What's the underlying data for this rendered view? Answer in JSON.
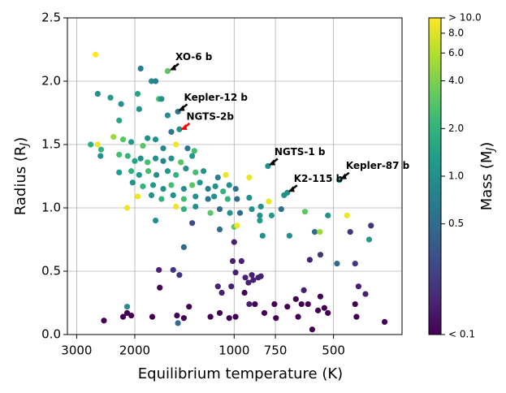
{
  "chart_data": {
    "type": "scatter",
    "x_label": "Equilibrium temperature (K)",
    "y_label": {
      "text": "Radius (R",
      "sub": "J",
      "end": ")"
    },
    "color_label": {
      "text": "Mass (M",
      "sub": "J",
      "end": ")"
    },
    "xscale": "log",
    "xlim": [
      3200,
      310
    ],
    "xticks": [
      3000,
      2000,
      1000,
      750,
      500
    ],
    "ylim": [
      0,
      2.5
    ],
    "yticks": [
      {
        "value": 0,
        "label": "0.0"
      },
      0.5,
      {
        "value": 1,
        "label": "1.0"
      },
      1.5,
      {
        "value": 2,
        "label": "2.0"
      },
      2.5
    ],
    "grid": true,
    "colormap": "viridis",
    "cscale": "log",
    "clim": [
      0.1,
      10
    ],
    "cticks": [
      {
        "value": 10,
        "label": "> 10.0"
      },
      {
        "value": 8,
        "label": "8.0"
      },
      {
        "value": 6,
        "label": "6.0"
      },
      {
        "value": 4,
        "label": "4.0"
      },
      {
        "value": 2,
        "label": "2.0"
      },
      {
        "value": 1,
        "label": "1.0"
      },
      0.5,
      {
        "value": 0.1,
        "label": "< 0.1"
      }
    ],
    "x": [
      2630,
      2590,
      2370,
      2200,
      2230,
      1920,
      1780,
      1730,
      1590,
      1690,
      1660,
      1960,
      1940,
      1480,
      1590,
      1465,
      1550,
      2720,
      2530,
      2590,
      2540,
      2320,
      2170,
      2050,
      1890,
      1830,
      1730,
      1640,
      1500,
      1384,
      1320,
      2230,
      2100,
      2000,
      1920,
      1830,
      1730,
      1640,
      1550,
      1450,
      1340,
      2230,
      2050,
      1940,
      1820,
      1720,
      1590,
      1500,
      1400,
      1309,
      1238,
      1120,
      1060,
      900,
      790,
      2030,
      1890,
      1760,
      1640,
      1550,
      1420,
      1340,
      1270,
      1200,
      1140,
      1080,
      1035,
      989,
      1960,
      1780,
      1660,
      1530,
      1420,
      1309,
      1200,
      1150,
      1046,
      980,
      900,
      706,
      690,
      480,
      2110,
      1500,
      1420,
      1309,
      1180,
      1106,
      1030,
      960,
      884,
      830,
      785,
      720,
      836,
      770,
      610,
      520,
      455,
      1730,
      1340,
      1106,
      1000,
      980,
      836,
      570,
      550,
      445,
      385,
      820,
      680,
      390,
      1420,
      1000,
      548,
      590,
      488,
      430,
      1690,
      1530,
      1465,
      1010,
      950,
      990,
      1680,
      925,
      905,
      875,
      845,
      830,
      1120,
      1090,
      1020,
      930,
      865,
      755,
      615,
      650,
      625,
      548,
      400,
      430,
      2110,
      2480,
      2170,
      2110,
      2050,
      1770,
      1490,
      1420,
      1370,
      1480,
      1180,
      1106,
      1035,
      990,
      810,
      747,
      690,
      597,
      580,
      557,
      520,
      350,
      426,
      900,
      533,
      640,
      420,
      884
    ],
    "y": [
      2.21,
      1.9,
      1.87,
      1.82,
      1.69,
      2.1,
      2.0,
      2.0,
      2.08,
      1.86,
      1.86,
      1.9,
      1.78,
      1.76,
      1.73,
      1.62,
      1.6,
      1.5,
      1.46,
      1.5,
      1.41,
      1.56,
      1.54,
      1.52,
      1.49,
      1.55,
      1.54,
      1.47,
      1.5,
      1.47,
      1.45,
      1.42,
      1.41,
      1.37,
      1.39,
      1.36,
      1.39,
      1.37,
      1.39,
      1.36,
      1.41,
      1.28,
      1.29,
      1.26,
      1.29,
      1.26,
      1.29,
      1.26,
      1.31,
      1.28,
      1.29,
      1.24,
      1.26,
      1.24,
      1.33,
      1.2,
      1.17,
      1.18,
      1.15,
      1.18,
      1.15,
      1.18,
      1.2,
      1.15,
      1.17,
      1.13,
      1.18,
      1.15,
      1.09,
      1.1,
      1.07,
      1.1,
      1.07,
      1.09,
      1.07,
      1.09,
      1.07,
      1.07,
      1.08,
      1.1,
      1.12,
      1.22,
      1.0,
      1.01,
      0.99,
      1.01,
      0.96,
      0.99,
      0.96,
      0.96,
      0.99,
      1.01,
      1.05,
      0.99,
      0.94,
      0.94,
      0.97,
      0.94,
      0.94,
      0.9,
      0.88,
      0.83,
      0.85,
      0.86,
      0.9,
      0.81,
      0.81,
      0.81,
      0.86,
      0.78,
      0.78,
      0.75,
      0.69,
      0.73,
      0.63,
      0.59,
      0.56,
      0.56,
      0.51,
      0.51,
      0.47,
      0.58,
      0.58,
      0.49,
      0.37,
      0.45,
      0.41,
      0.43,
      0.45,
      0.46,
      0.38,
      0.33,
      0.38,
      0.33,
      0.24,
      0.24,
      0.35,
      0.28,
      0.24,
      0.3,
      0.32,
      0.24,
      0.22,
      0.11,
      0.14,
      0.17,
      0.15,
      0.14,
      0.15,
      0.13,
      0.22,
      0.09,
      0.14,
      0.17,
      0.13,
      0.14,
      0.17,
      0.13,
      0.22,
      0.24,
      0.04,
      0.19,
      0.17,
      0.1,
      0.14,
      0.24,
      0.21,
      0.14,
      0.38,
      0.47
    ],
    "mass": [
      10,
      1,
      1.2,
      1,
      1.5,
      0.7,
      0.9,
      0.7,
      3,
      2.5,
      1,
      1.5,
      1,
      0.6,
      1,
      1,
      0.6,
      1.8,
      2,
      9,
      1,
      5,
      3,
      1.2,
      3,
      1,
      1,
      0.9,
      9,
      0.6,
      2.5,
      2.5,
      2,
      1.5,
      1,
      2.5,
      1,
      0.8,
      1,
      3,
      1.2,
      1.2,
      2,
      1.2,
      2.5,
      1,
      1.2,
      2,
      1,
      2.5,
      1,
      0.7,
      9,
      9,
      1,
      1,
      2,
      1.2,
      1,
      2.5,
      1,
      3,
      1.2,
      0.7,
      1,
      2,
      1,
      0.6,
      9,
      1,
      2,
      1,
      2.5,
      1,
      0.6,
      1,
      2,
      0.5,
      1,
      1,
      1,
      1,
      9,
      9,
      2,
      1,
      3,
      0.5,
      1,
      0.5,
      1,
      1,
      9,
      0.5,
      1,
      1.2,
      3,
      1,
      9,
      1,
      0.3,
      0.5,
      3,
      9,
      1.2,
      0.5,
      5,
      0.2,
      0.2,
      1,
      1,
      1.2,
      0.5,
      0.15,
      0.2,
      0.15,
      0.5,
      0.2,
      0.15,
      0.2,
      0.2,
      0.15,
      0.15,
      0.15,
      0.1,
      0.15,
      0.15,
      0.15,
      0.15,
      0.15,
      0.15,
      0.15,
      0.15,
      0.1,
      0.1,
      0.1,
      0.15,
      0.1,
      0.1,
      0.1,
      0.15,
      0.1,
      1,
      0.1,
      0.1,
      0.1,
      0.1,
      0.1,
      0.1,
      0.1,
      0.1,
      0.5,
      0.1,
      0.1,
      0.1,
      0.1,
      0.1,
      0.1,
      0.1,
      0.1,
      0.1,
      0.1,
      0.1,
      0.1,
      0.1,
      0.15,
      0.1,
      0.1,
      0.15,
      0.15
    ],
    "annotations": [
      {
        "text": "XO-6 b",
        "color": "#000000",
        "xy": [
          1576,
          2.08
        ]
      },
      {
        "text": "Kepler-12 b",
        "color": "#000000",
        "xy": [
          1485,
          1.76
        ]
      },
      {
        "text": "NGTS-2b",
        "color": "#ff0000",
        "xy": [
          1460,
          1.61
        ]
      },
      {
        "text": "NGTS-1 b",
        "color": "#000000",
        "xy": [
          790,
          1.33
        ]
      },
      {
        "text": "K2-115 b",
        "color": "#000000",
        "xy": [
          690,
          1.12
        ]
      },
      {
        "text": "Kepler-87 b",
        "color": "#000000",
        "xy": [
          480,
          1.22
        ]
      }
    ]
  }
}
